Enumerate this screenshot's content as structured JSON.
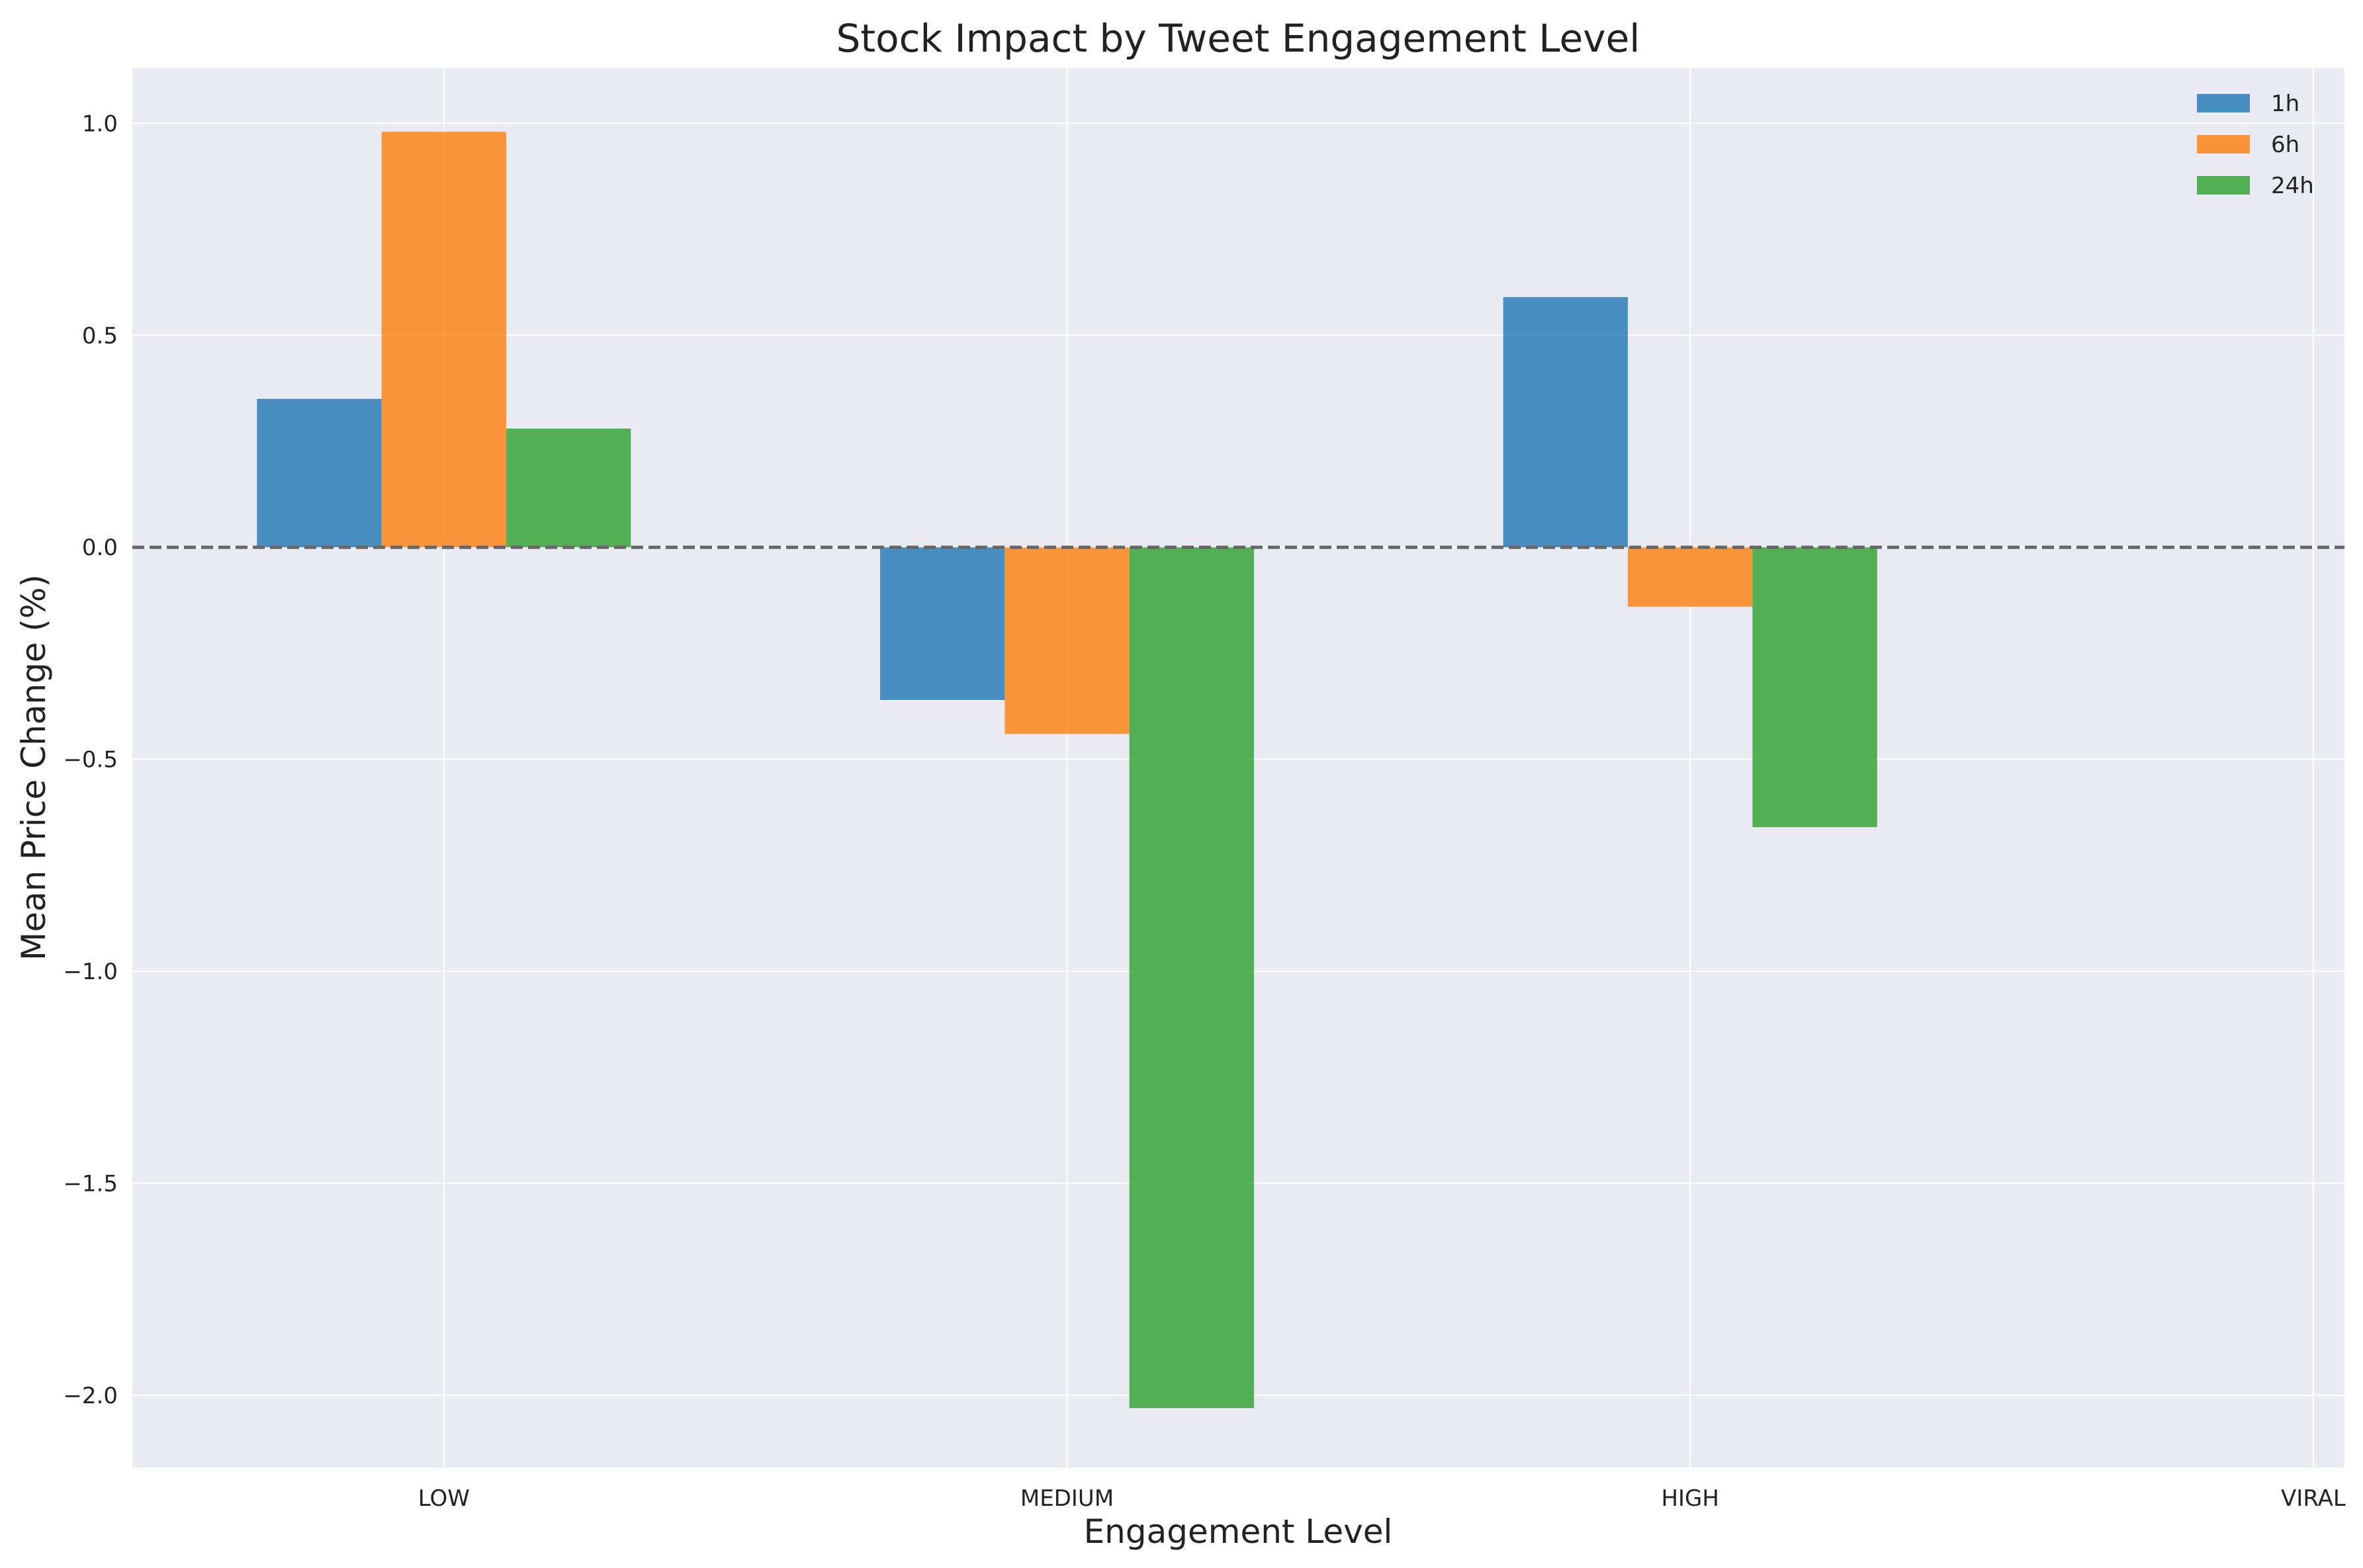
{
  "chart_data": {
    "type": "bar",
    "title": "Stock Impact by Tweet Engagement Level",
    "xlabel": "Engagement Level",
    "ylabel": "Mean Price Change (%)",
    "categories": [
      "LOW",
      "MEDIUM",
      "HIGH",
      "VIRAL"
    ],
    "series": [
      {
        "name": "1h",
        "color": "#1f77b4",
        "values": [
          0.35,
          -0.36,
          0.59,
          null
        ]
      },
      {
        "name": "6h",
        "color": "#ff7f0e",
        "values": [
          0.98,
          -0.44,
          -0.14,
          null
        ]
      },
      {
        "name": "24h",
        "color": "#2ca02c",
        "values": [
          0.28,
          -2.03,
          -0.66,
          null
        ]
      }
    ],
    "ylim": [
      -2.17,
      1.13
    ],
    "yticks": [
      1.0,
      0.5,
      0.0,
      -0.5,
      -1.0,
      -1.5,
      -2.0
    ],
    "ytick_labels": [
      "1.0",
      "0.5",
      "0.0",
      "−0.5",
      "−1.0",
      "−1.5",
      "−2.0"
    ],
    "grid": true,
    "legend_position": "top-right",
    "reference_line": {
      "y": 0.0,
      "style": "dashed",
      "color": "#666666"
    },
    "background_color": "#eaeaf2",
    "bar_alpha": 0.8
  }
}
